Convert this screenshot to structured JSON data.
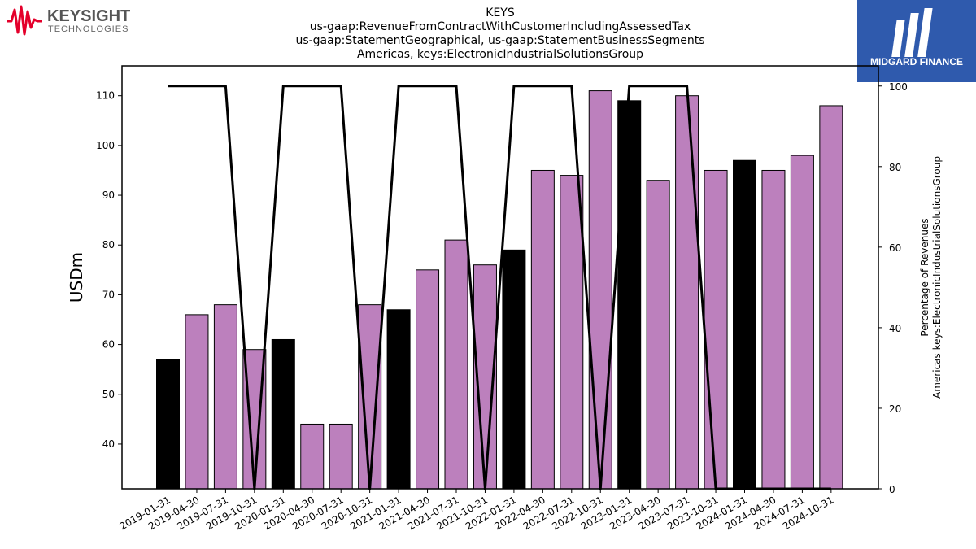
{
  "branding": {
    "left_logo_name": "KEYSIGHT",
    "left_logo_sub": "TECHNOLOGIES",
    "left_logo_color": "#e4002b",
    "right_logo_name": "MIDGARD FINANCE",
    "right_logo_bg": "#2f5aad"
  },
  "chart_data": {
    "type": "bar",
    "title_lines": [
      "KEYS",
      "us-gaap:RevenueFromContractWithCustomerIncludingAssessedTax",
      "us-gaap:StatementGeographical, us-gaap:StatementBusinessSegments",
      "Americas, keys:ElectronicIndustrialSolutionsGroup"
    ],
    "ylabel": "USDm",
    "y2label_lines": [
      "Percentage of Revenues",
      "Americas keys:ElectronicIndustrialSolutionsGroup"
    ],
    "ylim": [
      31,
      116
    ],
    "yticks": [
      40,
      50,
      60,
      70,
      80,
      90,
      100,
      110
    ],
    "y2lim": [
      0,
      105
    ],
    "y2ticks": [
      0,
      20,
      40,
      60,
      80,
      100
    ],
    "categories": [
      "2019-01-31",
      "2019-04-30",
      "2019-07-31",
      "2019-10-31",
      "2020-01-31",
      "2020-04-30",
      "2020-07-31",
      "2020-10-31",
      "2021-01-31",
      "2021-04-30",
      "2021-07-31",
      "2021-10-31",
      "2022-01-31",
      "2022-04-30",
      "2022-07-31",
      "2022-10-31",
      "2023-01-31",
      "2023-04-30",
      "2023-07-31",
      "2023-10-31",
      "2024-01-31",
      "2024-04-30",
      "2024-07-31",
      "2024-10-31"
    ],
    "values": [
      57,
      66,
      68,
      59,
      61,
      44,
      44,
      68,
      67,
      75,
      81,
      76,
      79,
      95,
      94,
      111,
      109,
      93,
      110,
      95,
      97,
      95,
      98,
      108
    ],
    "highlight": [
      true,
      false,
      false,
      false,
      true,
      false,
      false,
      false,
      true,
      false,
      false,
      false,
      true,
      false,
      false,
      false,
      true,
      false,
      false,
      false,
      true,
      false,
      false,
      false
    ],
    "percentage_line": [
      100,
      100,
      100,
      0,
      100,
      100,
      100,
      0,
      100,
      100,
      100,
      0,
      100,
      100,
      100,
      0,
      100,
      100,
      100,
      0,
      0,
      0,
      0,
      0
    ],
    "colors": {
      "bar": "#bc80bd",
      "highlight": "#000000",
      "line": "#000000",
      "edge": "#000000"
    },
    "grid": false,
    "legend": "none"
  }
}
